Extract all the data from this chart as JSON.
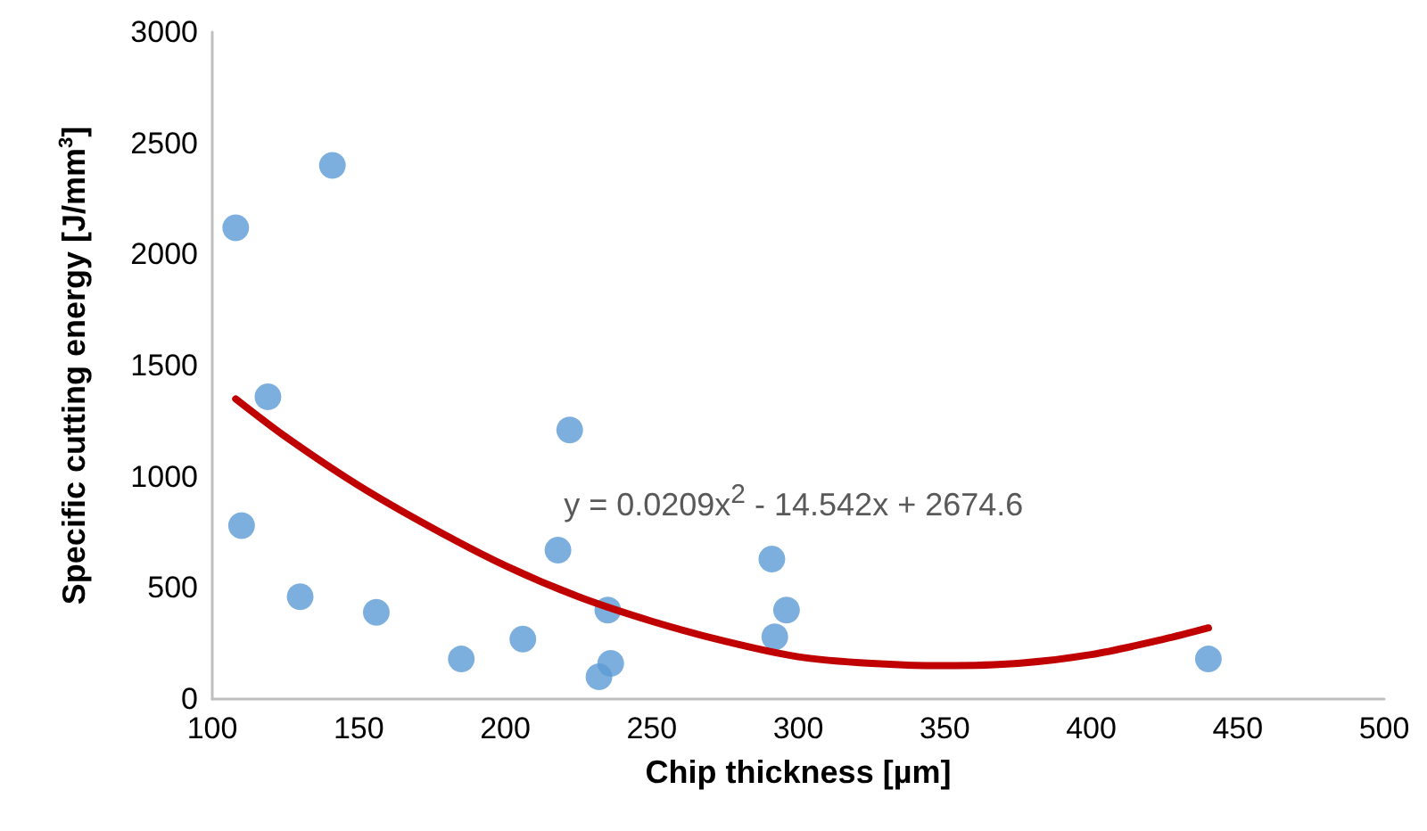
{
  "chart_data": {
    "type": "scatter",
    "xlabel": "Chip thickness [µm]",
    "ylabel": "Specific cutting energy [J/mm$^{3}$]",
    "xlim": [
      100,
      500
    ],
    "xticks": [
      100,
      150,
      200,
      250,
      300,
      350,
      400,
      450,
      500
    ],
    "ylim": [
      0,
      3000
    ],
    "yticks": [
      0,
      500,
      1000,
      1500,
      2000,
      2500,
      3000
    ],
    "grid": false,
    "marker": "circle",
    "annotations": [
      "y = 0.0209x$^{2}$ - 14.542x + 2674.6"
    ],
    "series": [
      {
        "color": "#5b9bd5",
        "x": [
          108,
          141,
          119,
          110,
          130,
          156,
          185,
          206,
          222,
          218,
          235,
          236,
          232,
          291,
          296,
          292,
          440
        ],
        "values": [
          2120,
          2400,
          1360,
          780,
          460,
          390,
          180,
          270,
          1210,
          670,
          400,
          160,
          100,
          630,
          400,
          280,
          180
        ]
      },
      {
        "type": "line",
        "color": "#c00000",
        "marker": "none",
        "line_style": "solid",
        "x": [
          108,
          125,
          150,
          175,
          200,
          225,
          250,
          275,
          300,
          325,
          350,
          375,
          400,
          425,
          440
        ],
        "values": [
          1350,
          1180,
          960,
          770,
          600,
          460,
          350,
          260,
          190,
          160,
          150,
          160,
          200,
          270,
          320
        ]
      }
    ]
  }
}
